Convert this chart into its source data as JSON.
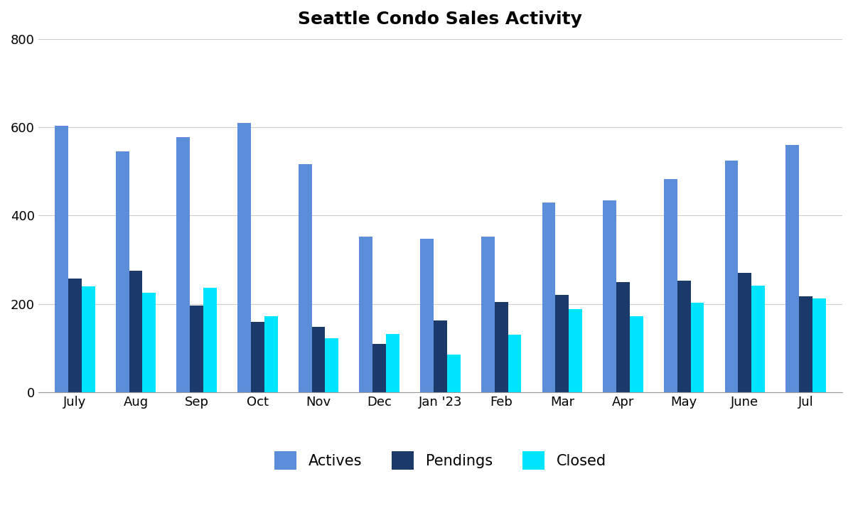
{
  "title": "Seattle Condo Sales Activity",
  "categories": [
    "July",
    "Aug",
    "Sep",
    "Oct",
    "Nov",
    "Dec",
    "Jan '23",
    "Feb",
    "Mar",
    "Apr",
    "May",
    "June",
    "Jul"
  ],
  "actives": [
    603,
    545,
    578,
    610,
    517,
    352,
    347,
    352,
    430,
    435,
    482,
    524,
    560
  ],
  "pendings": [
    258,
    275,
    197,
    160,
    148,
    110,
    163,
    205,
    220,
    250,
    252,
    270,
    218
  ],
  "closed": [
    240,
    225,
    237,
    173,
    122,
    132,
    85,
    130,
    188,
    173,
    203,
    242,
    213
  ],
  "color_actives": "#5B8DD9",
  "color_pendings": "#1B3A6B",
  "color_closed": "#00E5FF",
  "ylim": [
    0,
    800
  ],
  "yticks": [
    0,
    200,
    400,
    600,
    800
  ],
  "legend_labels": [
    "Actives",
    "Pendings",
    "Closed"
  ],
  "title_fontsize": 18,
  "background_color": "#ffffff",
  "grid_color": "#cccccc"
}
